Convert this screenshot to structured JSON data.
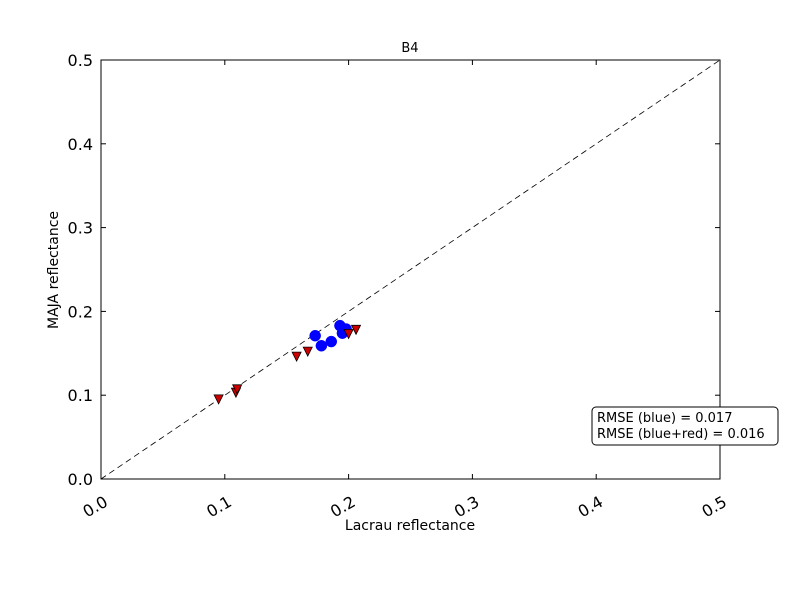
{
  "chart_data": {
    "type": "scatter",
    "title": "B4",
    "xlabel": "Lacrau reflectance",
    "ylabel": "MAJA reflectance",
    "xlim": [
      0.0,
      0.5
    ],
    "ylim": [
      0.0,
      0.5
    ],
    "x_ticks": [
      "0.0",
      "0.1",
      "0.2",
      "0.3",
      "0.4",
      "0.5"
    ],
    "y_ticks": [
      "0.0",
      "0.1",
      "0.2",
      "0.3",
      "0.4",
      "0.5"
    ],
    "grid": false,
    "reference_line": "1:1 dashed",
    "series": [
      {
        "marker": "circle",
        "color": "#0000ff",
        "points": [
          {
            "x": 0.173,
            "y": 0.171
          },
          {
            "x": 0.178,
            "y": 0.159
          },
          {
            "x": 0.186,
            "y": 0.164
          },
          {
            "x": 0.193,
            "y": 0.183
          },
          {
            "x": 0.195,
            "y": 0.174
          },
          {
            "x": 0.198,
            "y": 0.179
          }
        ]
      },
      {
        "marker": "triangle-down",
        "color": "#cc0000",
        "points": [
          {
            "x": 0.095,
            "y": 0.095
          },
          {
            "x": 0.109,
            "y": 0.103
          },
          {
            "x": 0.11,
            "y": 0.107
          },
          {
            "x": 0.158,
            "y": 0.146
          },
          {
            "x": 0.167,
            "y": 0.152
          },
          {
            "x": 0.2,
            "y": 0.173
          },
          {
            "x": 0.206,
            "y": 0.178
          }
        ]
      }
    ],
    "annotations": [
      "RMSE (blue) = 0.017",
      "RMSE (blue+red) = 0.016"
    ]
  }
}
